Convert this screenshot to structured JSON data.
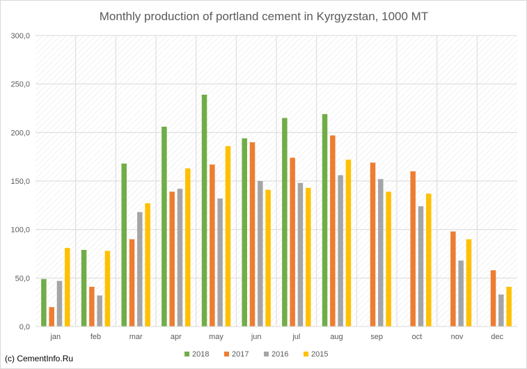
{
  "chart_data": {
    "type": "bar",
    "title": "Monthly production of portland cement in Kyrgyzstan, 1000 MT",
    "xlabel": "",
    "ylabel": "",
    "ylim": [
      0,
      300
    ],
    "yticks": [
      "0,0",
      "50,0",
      "100,0",
      "150,0",
      "200,0",
      "250,0",
      "300,0"
    ],
    "categories": [
      "jan",
      "feb",
      "mar",
      "apr",
      "may",
      "jun",
      "jul",
      "aug",
      "sep",
      "oct",
      "nov",
      "dec"
    ],
    "series": [
      {
        "name": "2018",
        "color": "#70ad47",
        "values": [
          49,
          79,
          168,
          206,
          239,
          194,
          215,
          219,
          null,
          null,
          null,
          null
        ]
      },
      {
        "name": "2017",
        "color": "#ed7d31",
        "values": [
          20,
          41,
          90,
          139,
          167,
          190,
          174,
          197,
          169,
          160,
          98,
          58
        ]
      },
      {
        "name": "2016",
        "color": "#a5a5a5",
        "values": [
          47,
          32,
          118,
          142,
          132,
          150,
          148,
          156,
          152,
          124,
          68,
          33
        ]
      },
      {
        "name": "2015",
        "color": "#ffc000",
        "values": [
          81,
          78,
          127,
          163,
          186,
          141,
          143,
          172,
          139,
          137,
          90,
          41
        ]
      }
    ],
    "grid": true,
    "legend_position": "bottom"
  },
  "footer": {
    "credit": "(c) CementInfo.Ru"
  }
}
